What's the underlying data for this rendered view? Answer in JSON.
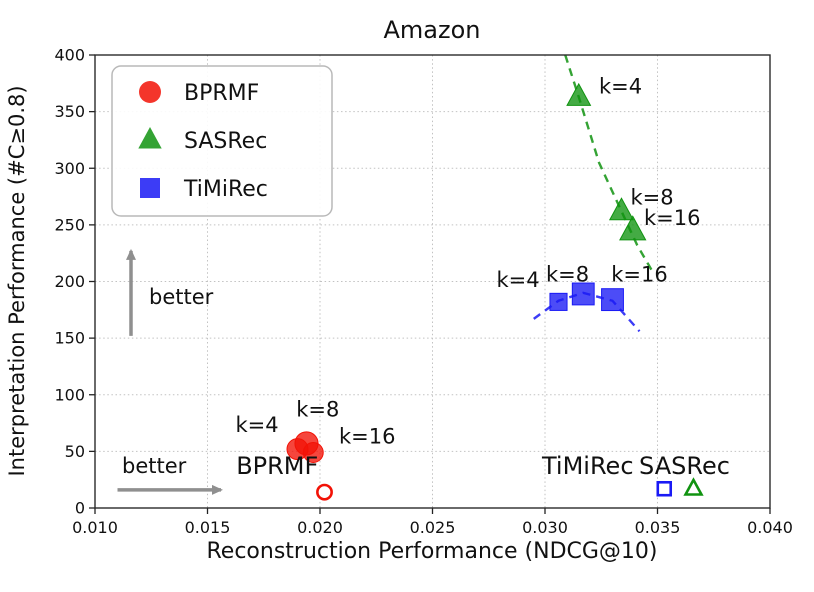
{
  "chart_data": {
    "type": "scatter",
    "title": "Amazon",
    "xlabel": "Reconstruction Performance (NDCG@10)",
    "ylabel": "Interpretation Performance (#C≥0.8)",
    "xlim": [
      0.01,
      0.04
    ],
    "ylim": [
      0,
      400
    ],
    "xticks": [
      0.01,
      0.015,
      0.02,
      0.025,
      0.03,
      0.035,
      0.04
    ],
    "xtick_labels": [
      "0.010",
      "0.015",
      "0.020",
      "0.025",
      "0.030",
      "0.035",
      "0.040"
    ],
    "yticks": [
      0,
      50,
      100,
      150,
      200,
      250,
      300,
      350,
      400
    ],
    "ytick_labels": [
      "0",
      "50",
      "100",
      "150",
      "200",
      "250",
      "300",
      "350",
      "400"
    ],
    "grid": true,
    "legend_position": "upper-left",
    "series": [
      {
        "name": "BPRMF",
        "marker": "circle",
        "color": "#f21206",
        "points": [
          {
            "x": 0.019,
            "y": 52,
            "k": 4,
            "size": 1.0
          },
          {
            "x": 0.0194,
            "y": 57,
            "k": 8,
            "size": 1.1
          },
          {
            "x": 0.0197,
            "y": 49,
            "k": 16,
            "size": 0.95
          }
        ],
        "point_labels": [
          {
            "text": "k=4",
            "x": 0.0172,
            "y": 67,
            "anchor": "middle"
          },
          {
            "text": "k=8",
            "x": 0.0199,
            "y": 81,
            "anchor": "middle"
          },
          {
            "text": "k=16",
            "x": 0.0221,
            "y": 57,
            "anchor": "middle"
          }
        ],
        "trend": null,
        "open_point": {
          "x": 0.0202,
          "y": 14
        },
        "open_label": {
          "text": "BPRMF",
          "x": 0.0181,
          "y": 30,
          "anchor": "middle"
        }
      },
      {
        "name": "SASRec",
        "marker": "triangle",
        "color": "#109310",
        "points": [
          {
            "x": 0.0315,
            "y": 363,
            "k": 4,
            "size": 1.0
          },
          {
            "x": 0.0334,
            "y": 262,
            "k": 8,
            "size": 1.0
          },
          {
            "x": 0.0339,
            "y": 245,
            "k": 16,
            "size": 1.1
          }
        ],
        "point_labels": [
          {
            "text": "k=4",
            "x": 0.0324,
            "y": 366,
            "anchor": "start"
          },
          {
            "text": "k=8",
            "x": 0.0338,
            "y": 268,
            "anchor": "start"
          },
          {
            "text": "k=16",
            "x": 0.0344,
            "y": 250,
            "anchor": "start"
          }
        ],
        "trend": [
          [
            0.0309,
            400
          ],
          [
            0.0315,
            363
          ],
          [
            0.0324,
            305
          ],
          [
            0.0334,
            262
          ],
          [
            0.0341,
            232
          ],
          [
            0.0348,
            208
          ]
        ],
        "open_point": {
          "x": 0.0366,
          "y": 17
        },
        "open_label": {
          "text": "SASRec",
          "x": 0.0362,
          "y": 30,
          "anchor": "middle"
        }
      },
      {
        "name": "TiMiRec",
        "marker": "square",
        "color": "#1a1af5",
        "points": [
          {
            "x": 0.0306,
            "y": 182,
            "k": 4,
            "size": 0.9
          },
          {
            "x": 0.0317,
            "y": 189,
            "k": 8,
            "size": 1.15
          },
          {
            "x": 0.033,
            "y": 184,
            "k": 16,
            "size": 1.15
          }
        ],
        "point_labels": [
          {
            "text": "k=4",
            "x": 0.0288,
            "y": 195,
            "anchor": "middle"
          },
          {
            "text": "k=8",
            "x": 0.031,
            "y": 200,
            "anchor": "middle"
          },
          {
            "text": "k=16",
            "x": 0.0342,
            "y": 200,
            "anchor": "middle"
          }
        ],
        "trend": [
          [
            0.0295,
            167
          ],
          [
            0.0306,
            183
          ],
          [
            0.0317,
            190
          ],
          [
            0.033,
            183
          ],
          [
            0.0342,
            156
          ]
        ],
        "open_point": {
          "x": 0.0353,
          "y": 17
        },
        "open_label": {
          "text": "TiMiRec",
          "x": 0.0319,
          "y": 30,
          "anchor": "middle"
        }
      }
    ],
    "annotations": [
      {
        "text": "better",
        "color": "#8f8f8f",
        "arrow": {
          "x1": 0.0116,
          "y1": 152,
          "x2": 0.0116,
          "y2": 227
        },
        "label": {
          "x": 0.0124,
          "y": 180,
          "anchor": "start"
        }
      },
      {
        "text": "better",
        "color": "#8f8f8f",
        "arrow": {
          "x1": 0.011,
          "y1": 16,
          "x2": 0.0156,
          "y2": 16
        },
        "label": {
          "x": 0.0112,
          "y": 31,
          "anchor": "start"
        }
      }
    ]
  }
}
